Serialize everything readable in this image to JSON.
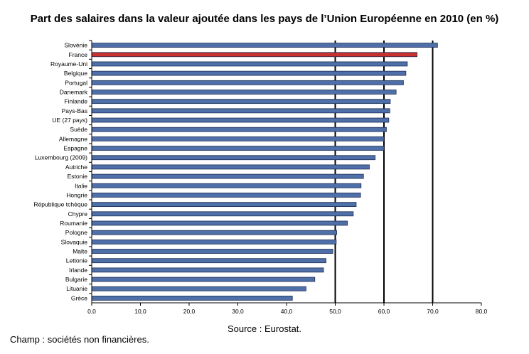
{
  "chart_data": {
    "type": "bar",
    "orientation": "horizontal",
    "title": "Part des salaires dans la valeur ajoutée dans les pays de l’Union Européenne en 2010 (en %)",
    "categories": [
      "Slovénie",
      "France",
      "Royaume-Uni",
      "Belgique",
      "Portugal",
      "Danemark",
      "Finlande",
      "Pays-Bas",
      "UE (27 pays)",
      "Suède",
      "Allemagne",
      "Espagne",
      "Luxembourg (2009)",
      "Autriche",
      "Estonie",
      "Italie",
      "Hongrie",
      "République tchèque",
      "Chypre",
      "Roumanie",
      "Pologne",
      "Slovaquie",
      "Malte",
      "Lettonie",
      "Irlande",
      "Bulgarie",
      "Lituanie",
      "Grèce"
    ],
    "values": [
      71.0,
      66.8,
      64.8,
      64.5,
      64.0,
      62.5,
      61.3,
      61.2,
      61.0,
      60.5,
      60.0,
      60.0,
      58.2,
      57.0,
      55.8,
      55.3,
      55.2,
      54.3,
      53.7,
      52.5,
      50.3,
      50.2,
      49.5,
      48.1,
      47.6,
      45.8,
      44.0,
      41.2
    ],
    "highlight": "France",
    "xlim": [
      0,
      80
    ],
    "xticks": [
      "0,0",
      "10,0",
      "20,0",
      "30,0",
      "40,0",
      "50,0",
      "60,0",
      "70,0",
      "80,0"
    ],
    "vertical_gridlines_at": [
      50,
      60,
      70
    ],
    "colors": {
      "bar": "#4f6fa8",
      "highlight": "#c8312f",
      "bar_edge": "#1f2f55",
      "grid": "#000000"
    },
    "source": "Source : Eurostat."
  },
  "footnote": "Champ : sociétés non financières."
}
